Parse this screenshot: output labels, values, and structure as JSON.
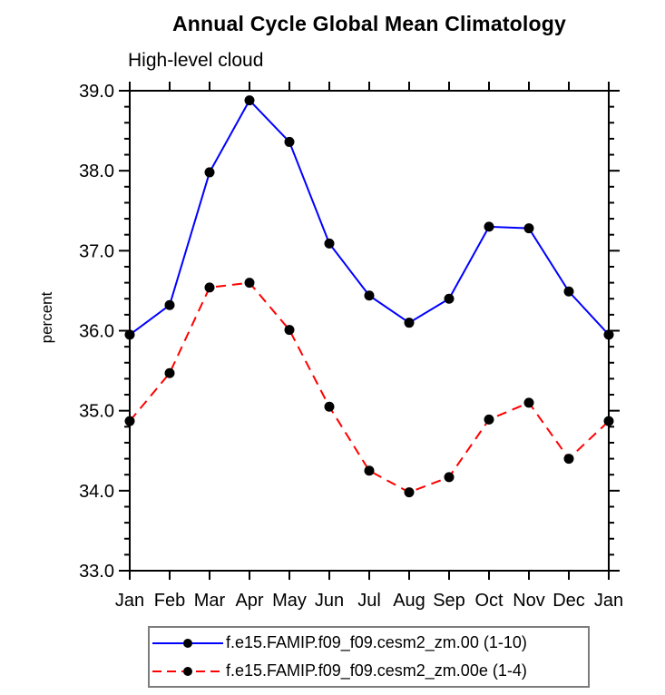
{
  "chart_data": {
    "type": "line",
    "title": "Annual Cycle Global Mean Climatology",
    "subtitle": "High-level cloud",
    "ylabel": "percent",
    "xlabel": "",
    "categories": [
      "Jan",
      "Feb",
      "Mar",
      "Apr",
      "May",
      "Jun",
      "Jul",
      "Aug",
      "Sep",
      "Oct",
      "Nov",
      "Dec",
      "Jan"
    ],
    "ylim": [
      33.0,
      39.0
    ],
    "ytick_labels": [
      "33.0",
      "34.0",
      "35.0",
      "36.0",
      "37.0",
      "38.0",
      "39.0"
    ],
    "ytick_values": [
      33.0,
      34.0,
      35.0,
      36.0,
      37.0,
      38.0,
      39.0
    ],
    "minor_tick_step": 0.2,
    "grid": false,
    "marker": "filled-circle",
    "marker_color": "#000000",
    "axis_color": "#000000",
    "legend_position": "bottom",
    "series": [
      {
        "name": "f.e15.FAMIP.f09_f09.cesm2_zm.00 (1-10)",
        "color": "#0000ff",
        "line_style": "solid",
        "values": [
          35.95,
          36.32,
          37.98,
          38.88,
          38.36,
          37.09,
          36.44,
          36.1,
          36.4,
          37.3,
          37.28,
          36.49,
          35.95
        ]
      },
      {
        "name": "f.e15.FAMIP.f09_f09.cesm2_zm.00e (1-4)",
        "color": "#ff0000",
        "line_style": "dashed",
        "values": [
          34.87,
          35.47,
          36.54,
          36.6,
          36.01,
          35.05,
          34.25,
          33.98,
          34.17,
          34.89,
          35.1,
          34.4,
          34.87
        ]
      }
    ]
  }
}
